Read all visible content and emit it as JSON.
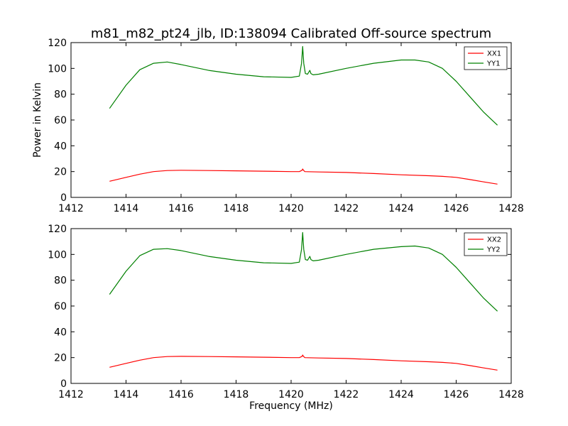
{
  "figure": {
    "title": "m81_m82_pt24_jlb, ID:138094 Calibrated Off-source spectrum"
  },
  "chart_data": [
    {
      "type": "line",
      "title": "m81_m82_pt24_jlb, ID:138094 Calibrated Off-source spectrum",
      "xlabel": "",
      "ylabel": "Power in Kelvin",
      "xlim": [
        1412,
        1428
      ],
      "ylim": [
        0,
        120
      ],
      "xticks": [
        "1412",
        "1414",
        "1416",
        "1418",
        "1420",
        "1422",
        "1424",
        "1426",
        "1428"
      ],
      "yticks": [
        "0",
        "20",
        "40",
        "60",
        "80",
        "100",
        "120"
      ],
      "grid": false,
      "legend": "top-right",
      "series": [
        {
          "name": "XX1",
          "color": "#ff0000",
          "x": [
            1413.4,
            1414.0,
            1414.5,
            1415.0,
            1415.5,
            1416.0,
            1417.0,
            1418.0,
            1419.0,
            1420.0,
            1420.3,
            1420.4,
            1420.42,
            1420.45,
            1420.5,
            1420.6,
            1421.0,
            1422.0,
            1423.0,
            1424.0,
            1425.0,
            1425.5,
            1426.0,
            1426.5,
            1427.0,
            1427.5
          ],
          "y": [
            12.5,
            15.5,
            18.0,
            20.0,
            20.8,
            21.0,
            20.8,
            20.6,
            20.3,
            20.0,
            20.0,
            21.0,
            22.0,
            21.0,
            20.0,
            19.9,
            19.7,
            19.3,
            18.5,
            17.5,
            16.8,
            16.3,
            15.5,
            13.8,
            12.0,
            10.3
          ]
        },
        {
          "name": "YY1",
          "color": "#008000",
          "x": [
            1413.4,
            1414.0,
            1414.5,
            1415.0,
            1415.5,
            1416.0,
            1417.0,
            1418.0,
            1419.0,
            1420.0,
            1420.3,
            1420.38,
            1420.42,
            1420.46,
            1420.52,
            1420.6,
            1420.68,
            1420.72,
            1420.8,
            1421.0,
            1422.0,
            1423.0,
            1424.0,
            1424.5,
            1425.0,
            1425.5,
            1426.0,
            1426.5,
            1427.0,
            1427.5
          ],
          "y": [
            69,
            87,
            99,
            104,
            105,
            103,
            98.5,
            95.5,
            93.5,
            93,
            94,
            104,
            117,
            104,
            96,
            95.5,
            98.5,
            96,
            95,
            95.5,
            100,
            104,
            106.5,
            106.5,
            105,
            100,
            90,
            78,
            66,
            56
          ]
        }
      ]
    },
    {
      "type": "line",
      "title": "",
      "xlabel": "Frequency (MHz)",
      "ylabel": "",
      "xlim": [
        1412,
        1428
      ],
      "ylim": [
        0,
        120
      ],
      "xticks": [
        "1412",
        "1414",
        "1416",
        "1418",
        "1420",
        "1422",
        "1424",
        "1426",
        "1428"
      ],
      "yticks": [
        "0",
        "20",
        "40",
        "60",
        "80",
        "100",
        "120"
      ],
      "grid": false,
      "legend": "top-right",
      "series": [
        {
          "name": "XX2",
          "color": "#ff0000",
          "x": [
            1413.4,
            1414.0,
            1414.5,
            1415.0,
            1415.5,
            1416.0,
            1417.0,
            1418.0,
            1419.0,
            1420.0,
            1420.3,
            1420.4,
            1420.42,
            1420.45,
            1420.5,
            1420.6,
            1421.0,
            1422.0,
            1423.0,
            1424.0,
            1425.0,
            1425.5,
            1426.0,
            1426.5,
            1427.0,
            1427.5
          ],
          "y": [
            12.5,
            15.5,
            18.0,
            20.0,
            20.8,
            21.0,
            20.8,
            20.6,
            20.3,
            20.0,
            20.0,
            21.0,
            22.0,
            21.0,
            20.0,
            19.9,
            19.7,
            19.3,
            18.5,
            17.5,
            16.8,
            16.3,
            15.5,
            13.8,
            12.0,
            10.3
          ]
        },
        {
          "name": "YY2",
          "color": "#008000",
          "x": [
            1413.4,
            1414.0,
            1414.5,
            1415.0,
            1415.5,
            1416.0,
            1417.0,
            1418.0,
            1419.0,
            1420.0,
            1420.3,
            1420.38,
            1420.42,
            1420.46,
            1420.52,
            1420.6,
            1420.68,
            1420.72,
            1420.8,
            1421.0,
            1422.0,
            1423.0,
            1424.0,
            1424.5,
            1425.0,
            1425.5,
            1426.0,
            1426.5,
            1427.0,
            1427.5
          ],
          "y": [
            69,
            87,
            99,
            104,
            104.5,
            103,
            98.5,
            95.5,
            93.5,
            93,
            94,
            104,
            117,
            104,
            96,
            95.5,
            98.5,
            96,
            95,
            95.5,
            100,
            104,
            106,
            106.5,
            105,
            100,
            90,
            78,
            66,
            56
          ]
        }
      ]
    }
  ]
}
